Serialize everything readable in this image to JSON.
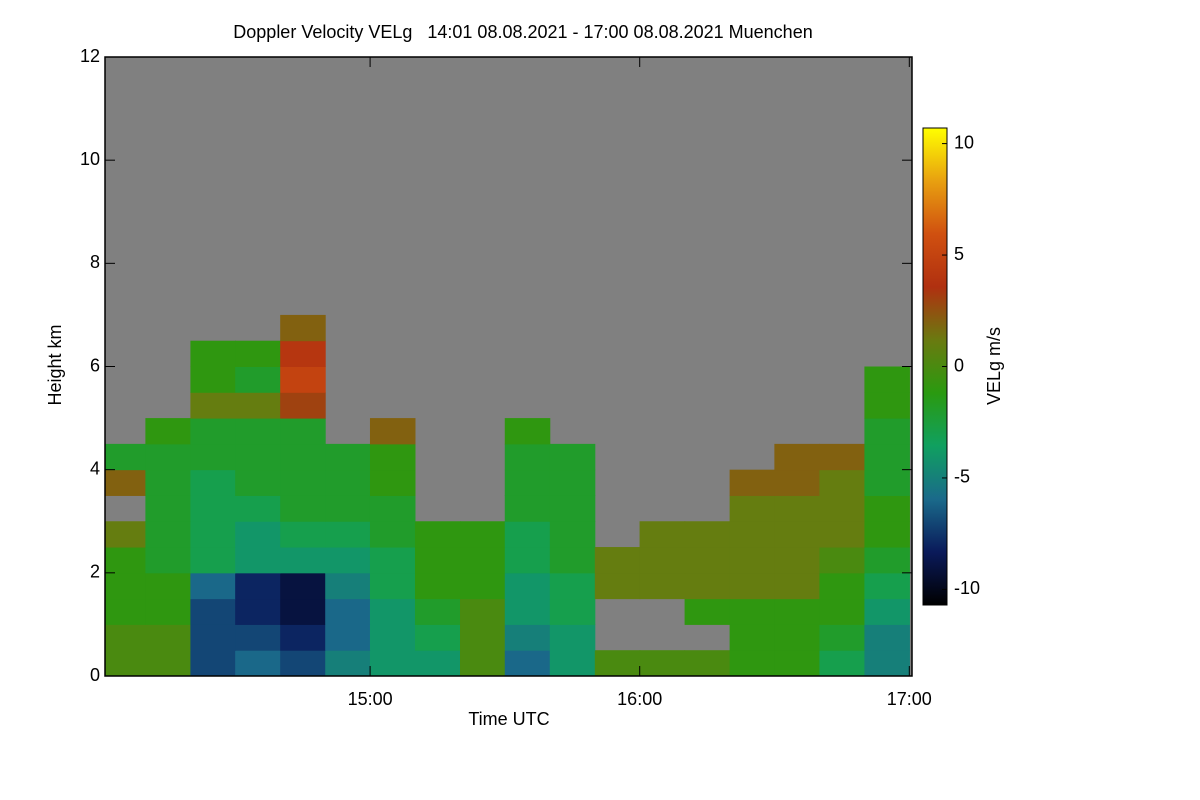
{
  "chart_data": {
    "type": "heatmap",
    "title": "Doppler Velocity VELg   14:01 08.08.2021 - 17:00 08.08.2021 Muenchen",
    "x_label": "Time UTC",
    "y_label": "Height km",
    "colorbar_label": "VELg m/s",
    "xlim": [
      14.0167,
      17.01
    ],
    "xticks": [
      {
        "value": 15,
        "label": "15:00"
      },
      {
        "value": 16,
        "label": "16:00"
      },
      {
        "value": 17,
        "label": "17:00"
      }
    ],
    "ylim": [
      0,
      12
    ],
    "yticks": [
      0,
      2,
      4,
      6,
      8,
      10,
      12
    ],
    "clim": [
      -10.7,
      10.7
    ],
    "cticks": [
      10,
      5,
      0,
      -5,
      -10
    ],
    "background": "#808080",
    "colors": [
      "#000000",
      "#0a1a5a",
      "#1a6a8a",
      "#10a060",
      "#2a9a10",
      "#6a7a10",
      "#b03010",
      "#d05010",
      "#e8a010",
      "#ffff00"
    ],
    "x": [
      14.083,
      14.25,
      14.417,
      14.583,
      14.75,
      14.917,
      15.083,
      15.25,
      15.417,
      15.583,
      15.75,
      15.917,
      16.083,
      16.25,
      16.417,
      16.583,
      16.75,
      16.917
    ],
    "y": [
      0.25,
      0.75,
      1.25,
      1.75,
      2.25,
      2.75,
      3.25,
      3.75,
      4.25,
      4.75,
      5.25,
      5.75,
      6.25,
      6.75
    ],
    "z": [
      [
        0,
        0,
        -7,
        -6,
        -7,
        -5,
        -4,
        -4,
        0,
        -6,
        -4,
        0,
        0,
        0,
        -1,
        -1,
        -3,
        -5
      ],
      [
        0,
        0,
        -7,
        -7,
        -8,
        -6,
        -4,
        -3,
        0,
        -5,
        -4,
        null,
        null,
        null,
        -1,
        -1,
        -2,
        -5
      ],
      [
        -1,
        -1,
        -7,
        -8,
        -9,
        -6,
        -4,
        -2,
        0,
        -4,
        -3,
        null,
        null,
        -1,
        -1,
        -1,
        -1,
        -4
      ],
      [
        -1,
        -1,
        -6,
        -8,
        -9,
        -5,
        -3,
        -1,
        -1,
        -4,
        -3,
        1,
        1,
        1,
        1,
        1,
        -1,
        -3
      ],
      [
        -1,
        -2,
        -3,
        -4,
        -4,
        -4,
        -3,
        -1,
        -1,
        -3,
        -2,
        1,
        1,
        1,
        1,
        1,
        0,
        -2
      ],
      [
        1,
        -2,
        -3,
        -4,
        -3,
        -3,
        -2,
        -1,
        -1,
        -3,
        -2,
        null,
        1,
        1,
        1,
        1,
        1,
        -1
      ],
      [
        null,
        -2,
        -3,
        -3,
        -2,
        -2,
        -2,
        null,
        null,
        -2,
        -2,
        null,
        null,
        null,
        1,
        1,
        1,
        -1
      ],
      [
        2,
        -2,
        -3,
        -2,
        -2,
        -2,
        -1,
        null,
        null,
        -2,
        -2,
        null,
        null,
        null,
        2,
        2,
        1,
        -2
      ],
      [
        -2,
        -2,
        -2,
        -2,
        -2,
        -2,
        -1,
        null,
        null,
        -2,
        -2,
        null,
        null,
        null,
        null,
        2,
        2,
        -2
      ],
      [
        null,
        -1,
        -2,
        -2,
        -2,
        null,
        2,
        null,
        null,
        -1,
        null,
        null,
        null,
        null,
        null,
        null,
        null,
        -2
      ],
      [
        null,
        null,
        1,
        1,
        3,
        null,
        null,
        null,
        null,
        null,
        null,
        null,
        null,
        null,
        null,
        null,
        null,
        -1
      ],
      [
        null,
        null,
        -1,
        -2,
        5,
        null,
        null,
        null,
        null,
        null,
        null,
        null,
        null,
        null,
        null,
        null,
        null,
        -1
      ],
      [
        null,
        null,
        -1,
        -1,
        4,
        null,
        null,
        null,
        null,
        null,
        null,
        null,
        null,
        null,
        null,
        null,
        null,
        null
      ],
      [
        null,
        null,
        null,
        null,
        2,
        null,
        null,
        null,
        null,
        null,
        null,
        null,
        null,
        null,
        null,
        null,
        null,
        null
      ]
    ]
  }
}
